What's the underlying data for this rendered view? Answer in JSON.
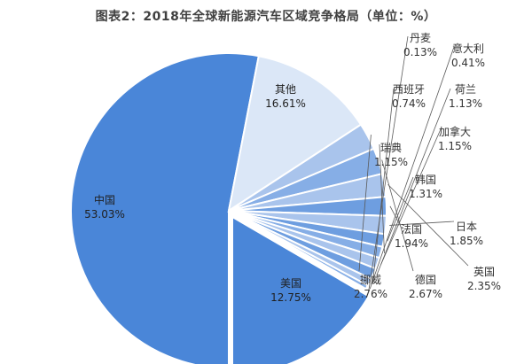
{
  "chart_data": {
    "type": "pie",
    "title": "图表2：2018年全球新能源汽车区域竞争格局（单位：%）",
    "slices": [
      {
        "name": "中国",
        "value": 53.03,
        "label": "53.03%",
        "color": "#4a86d8"
      },
      {
        "name": "美国",
        "value": 12.75,
        "label": "12.75%",
        "color": "#dbe7f7"
      },
      {
        "name": "挪威",
        "value": 2.76,
        "label": "2.76%",
        "color": "#a9c4ec"
      },
      {
        "name": "德国",
        "value": 2.67,
        "label": "2.67%",
        "color": "#86aee6"
      },
      {
        "name": "英国",
        "value": 2.35,
        "label": "2.35%",
        "color": "#a9c4ec"
      },
      {
        "name": "法国",
        "value": 1.94,
        "label": "1.94%",
        "color": "#6e9ee0"
      },
      {
        "name": "日本",
        "value": 1.85,
        "label": "1.85%",
        "color": "#a9c4ec"
      },
      {
        "name": "韩国",
        "value": 1.31,
        "label": "1.31%",
        "color": "#6e9ee0"
      },
      {
        "name": "瑞典",
        "value": 1.15,
        "label": "1.15%",
        "color": "#86aee6"
      },
      {
        "name": "加拿大",
        "value": 1.15,
        "label": "1.15%",
        "color": "#a9c4ec"
      },
      {
        "name": "荷兰",
        "value": 1.13,
        "label": "1.13%",
        "color": "#6e9ee0"
      },
      {
        "name": "西班牙",
        "value": 0.74,
        "label": "0.74%",
        "color": "#a9c4ec"
      },
      {
        "name": "意大利",
        "value": 0.41,
        "label": "0.41%",
        "color": "#86aee6"
      },
      {
        "name": "丹麦",
        "value": 0.13,
        "label": "0.13%",
        "color": "#a9c4ec"
      },
      {
        "name": "其他",
        "value": 16.61,
        "label": "16.61%",
        "color": "#4a86d8"
      }
    ]
  }
}
